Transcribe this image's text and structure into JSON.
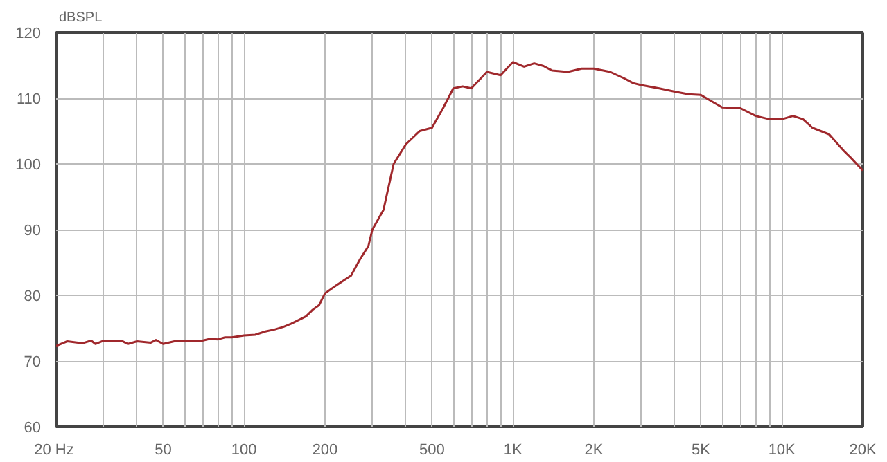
{
  "chart_data": {
    "type": "line",
    "ylabel": "dBSPL",
    "log": "x",
    "grid": true,
    "xlim": [
      20,
      20000
    ],
    "ylim": [
      60,
      120
    ],
    "xticks": [
      {
        "value": 20,
        "label": "20  Hz"
      },
      {
        "value": 30,
        "label": null
      },
      {
        "value": 40,
        "label": null
      },
      50,
      {
        "value": 60,
        "label": null
      },
      {
        "value": 70,
        "label": null
      },
      {
        "value": 80,
        "label": null
      },
      {
        "value": 90,
        "label": null
      },
      100,
      200,
      {
        "value": 300,
        "label": null
      },
      {
        "value": 400,
        "label": null
      },
      500,
      {
        "value": 600,
        "label": null
      },
      {
        "value": 700,
        "label": null
      },
      {
        "value": 800,
        "label": null
      },
      {
        "value": 900,
        "label": null
      },
      {
        "value": 1000,
        "label": "1K"
      },
      {
        "value": 2000,
        "label": "2K"
      },
      {
        "value": 3000,
        "label": null
      },
      {
        "value": 4000,
        "label": null
      },
      {
        "value": 5000,
        "label": "5K"
      },
      {
        "value": 6000,
        "label": null
      },
      {
        "value": 7000,
        "label": null
      },
      {
        "value": 8000,
        "label": null
      },
      {
        "value": 9000,
        "label": null
      },
      {
        "value": 10000,
        "label": "10K"
      },
      {
        "value": 20000,
        "label": "20K"
      }
    ],
    "yticks": [
      60,
      70,
      80,
      90,
      100,
      110,
      120
    ],
    "x": [
      20,
      22,
      25,
      27,
      28,
      30,
      35,
      37,
      40,
      45,
      47,
      50,
      55,
      60,
      70,
      75,
      80,
      85,
      90,
      100,
      110,
      120,
      130,
      140,
      150,
      170,
      180,
      190,
      200,
      220,
      250,
      270,
      290,
      300,
      330,
      360,
      400,
      450,
      500,
      550,
      600,
      650,
      700,
      800,
      900,
      1000,
      1100,
      1200,
      1300,
      1400,
      1600,
      1800,
      2000,
      2300,
      2600,
      2800,
      3000,
      3500,
      4000,
      4500,
      5000,
      5500,
      6000,
      7000,
      8000,
      9000,
      10000,
      11000,
      12000,
      13000,
      15000,
      17000,
      18000,
      20000
    ],
    "series": [
      {
        "color": "#a0282c",
        "values": [
          72.3,
          73,
          72.7,
          73.1,
          72.6,
          73.1,
          73.1,
          72.6,
          73,
          72.8,
          73.2,
          72.6,
          73,
          73,
          73.1,
          73.4,
          73.3,
          73.6,
          73.6,
          73.9,
          74,
          74.5,
          74.8,
          75.2,
          75.7,
          76.8,
          77.8,
          78.5,
          80.3,
          81.5,
          83,
          85.5,
          87.5,
          90,
          93,
          100,
          103,
          105,
          105.5,
          108.5,
          111.5,
          111.8,
          111.5,
          114,
          113.5,
          115.5,
          114.8,
          115.3,
          114.9,
          114.2,
          114,
          114.5,
          114.5,
          114,
          113,
          112.3,
          112,
          111.5,
          111,
          110.6,
          110.5,
          109.5,
          108.6,
          108.5,
          107.3,
          106.8,
          106.8,
          107.3,
          106.8,
          105.5,
          104.5,
          102,
          101,
          99
        ]
      }
    ]
  }
}
